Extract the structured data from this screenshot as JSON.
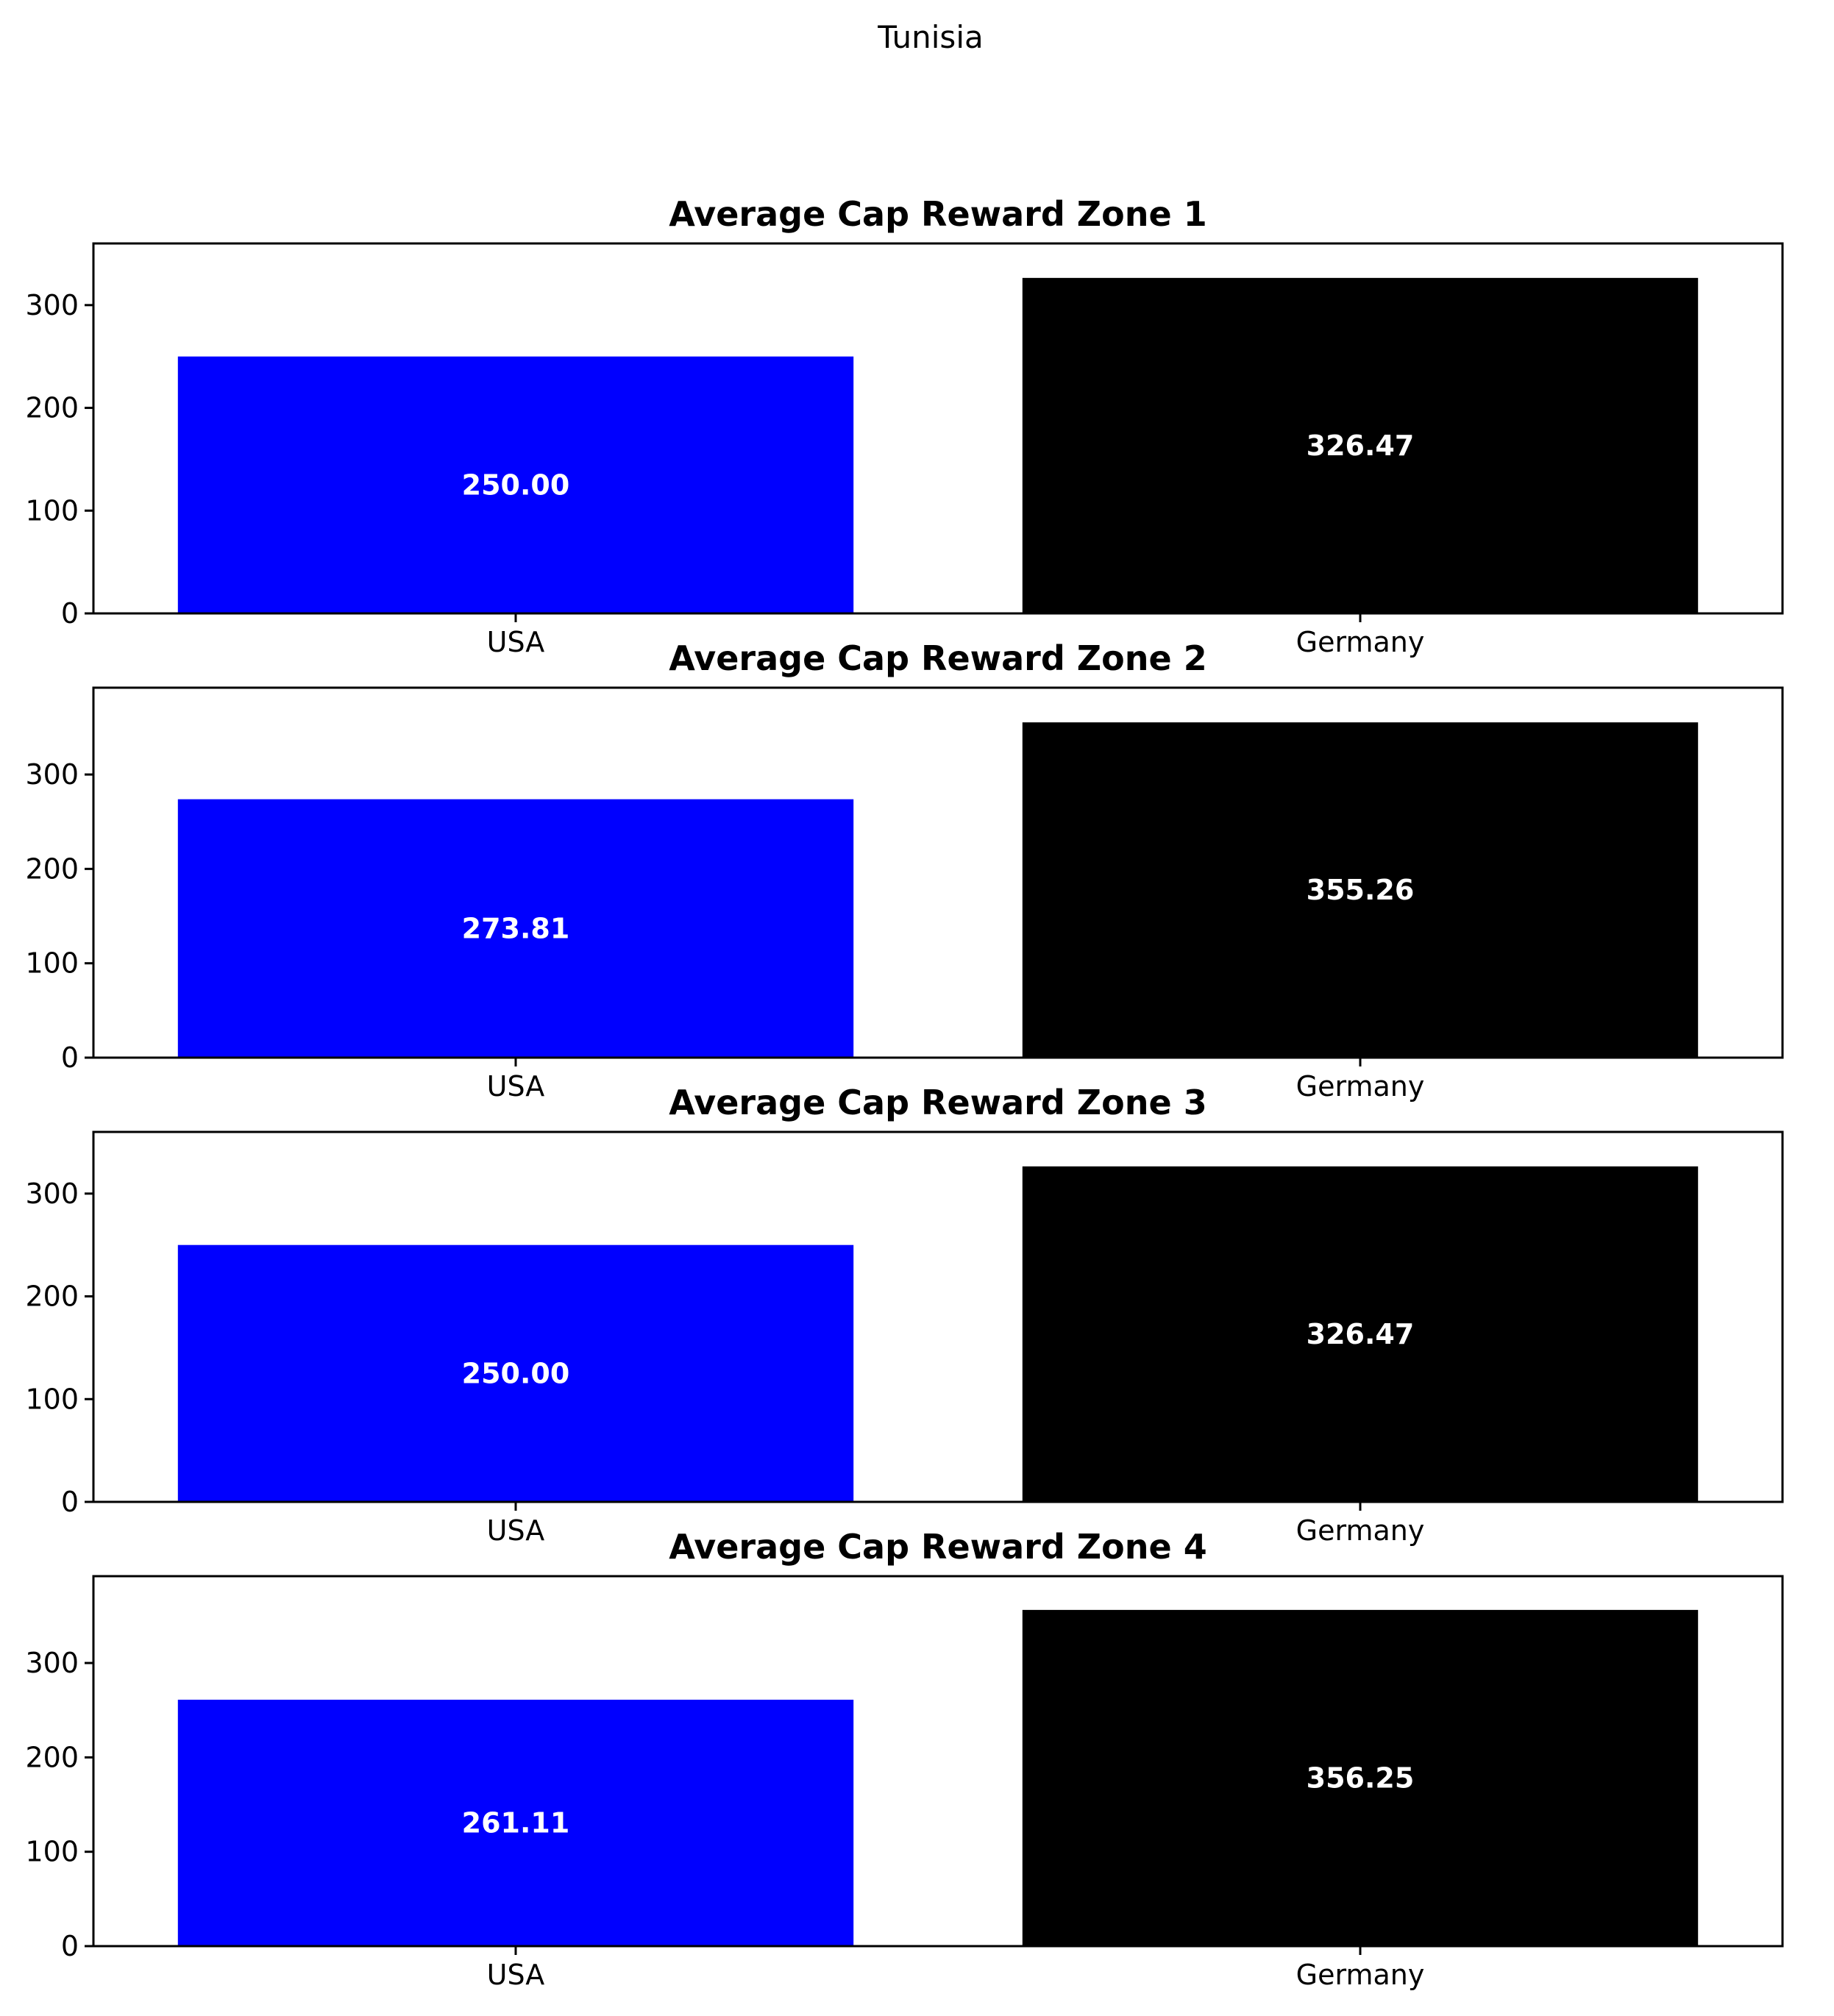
{
  "figure": {
    "suptitle": "Tunisia",
    "bar_colors": [
      "#0000ff",
      "#000000"
    ],
    "label_color": "#ffffff"
  },
  "chart_data": [
    {
      "type": "bar",
      "title": "Average Cap Reward Zone 1",
      "categories": [
        "USA",
        "Germany"
      ],
      "values": [
        250.0,
        326.47
      ],
      "value_labels": [
        "250.00",
        "326.47"
      ],
      "yticks": [
        0,
        100,
        200,
        300
      ],
      "ylim": [
        0,
        360
      ],
      "xlabel": "",
      "ylabel": "",
      "grid": false
    },
    {
      "type": "bar",
      "title": "Average Cap Reward Zone 2",
      "categories": [
        "USA",
        "Germany"
      ],
      "values": [
        273.81,
        355.26
      ],
      "value_labels": [
        "273.81",
        "355.26"
      ],
      "yticks": [
        0,
        100,
        200,
        300
      ],
      "ylim": [
        0,
        392
      ],
      "xlabel": "",
      "ylabel": "",
      "grid": false
    },
    {
      "type": "bar",
      "title": "Average Cap Reward Zone 3",
      "categories": [
        "USA",
        "Germany"
      ],
      "values": [
        250.0,
        326.47
      ],
      "value_labels": [
        "250.00",
        "326.47"
      ],
      "yticks": [
        0,
        100,
        200,
        300
      ],
      "ylim": [
        0,
        360
      ],
      "xlabel": "",
      "ylabel": "",
      "grid": false
    },
    {
      "type": "bar",
      "title": "Average Cap Reward Zone 4",
      "categories": [
        "USA",
        "Germany"
      ],
      "values": [
        261.11,
        356.25
      ],
      "value_labels": [
        "261.11",
        "356.25"
      ],
      "yticks": [
        0,
        100,
        200,
        300
      ],
      "ylim": [
        0,
        392
      ],
      "xlabel": "",
      "ylabel": "",
      "grid": false
    }
  ]
}
